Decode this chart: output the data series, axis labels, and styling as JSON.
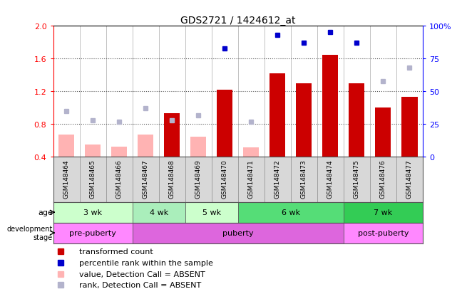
{
  "title": "GDS2721 / 1424612_at",
  "samples": [
    "GSM148464",
    "GSM148465",
    "GSM148466",
    "GSM148467",
    "GSM148468",
    "GSM148469",
    "GSM148470",
    "GSM148471",
    "GSM148472",
    "GSM148473",
    "GSM148474",
    "GSM148475",
    "GSM148476",
    "GSM148477"
  ],
  "transformed_count": [
    null,
    null,
    null,
    null,
    0.93,
    null,
    1.22,
    null,
    1.42,
    1.3,
    1.65,
    1.3,
    1.0,
    1.13
  ],
  "transformed_count_absent": [
    0.67,
    0.55,
    0.53,
    0.67,
    null,
    0.65,
    null,
    0.52,
    null,
    null,
    null,
    null,
    null,
    null
  ],
  "percentile_rank": [
    null,
    null,
    null,
    null,
    null,
    null,
    83,
    null,
    93,
    87,
    95,
    87,
    null,
    null
  ],
  "percentile_rank_absent": [
    35,
    28,
    27,
    37,
    28,
    32,
    null,
    27,
    null,
    null,
    null,
    null,
    58,
    68
  ],
  "ylim_left": [
    0.4,
    2.0
  ],
  "ylim_right": [
    0,
    100
  ],
  "yticks_left": [
    0.4,
    0.8,
    1.2,
    1.6,
    2.0
  ],
  "yticks_right": [
    0,
    25,
    50,
    75,
    100
  ],
  "bar_color_present": "#cc0000",
  "bar_color_absent": "#ffb3b3",
  "dot_color_present": "#0000cc",
  "dot_color_absent": "#b3b3cc",
  "age_groups": [
    {
      "label": "3 wk",
      "start": 0,
      "end": 3,
      "color": "#ccffcc"
    },
    {
      "label": "4 wk",
      "start": 3,
      "end": 5,
      "color": "#aaeebb"
    },
    {
      "label": "5 wk",
      "start": 5,
      "end": 7,
      "color": "#ccffcc"
    },
    {
      "label": "6 wk",
      "start": 7,
      "end": 11,
      "color": "#55dd77"
    },
    {
      "label": "7 wk",
      "start": 11,
      "end": 14,
      "color": "#33cc55"
    }
  ],
  "dev_groups": [
    {
      "label": "pre-puberty",
      "start": 0,
      "end": 3,
      "color": "#ff88ff"
    },
    {
      "label": "puberty",
      "start": 3,
      "end": 11,
      "color": "#dd66dd"
    },
    {
      "label": "post-puberty",
      "start": 11,
      "end": 14,
      "color": "#ff88ff"
    }
  ],
  "grid_color": "#888888",
  "col_bg": "#d8d8d8",
  "legend_items": [
    {
      "color": "#cc0000",
      "marker": "s",
      "label": "transformed count"
    },
    {
      "color": "#0000cc",
      "marker": "s",
      "label": "percentile rank within the sample"
    },
    {
      "color": "#ffb3b3",
      "marker": "s",
      "label": "value, Detection Call = ABSENT"
    },
    {
      "color": "#b3b3cc",
      "marker": "s",
      "label": "rank, Detection Call = ABSENT"
    }
  ]
}
